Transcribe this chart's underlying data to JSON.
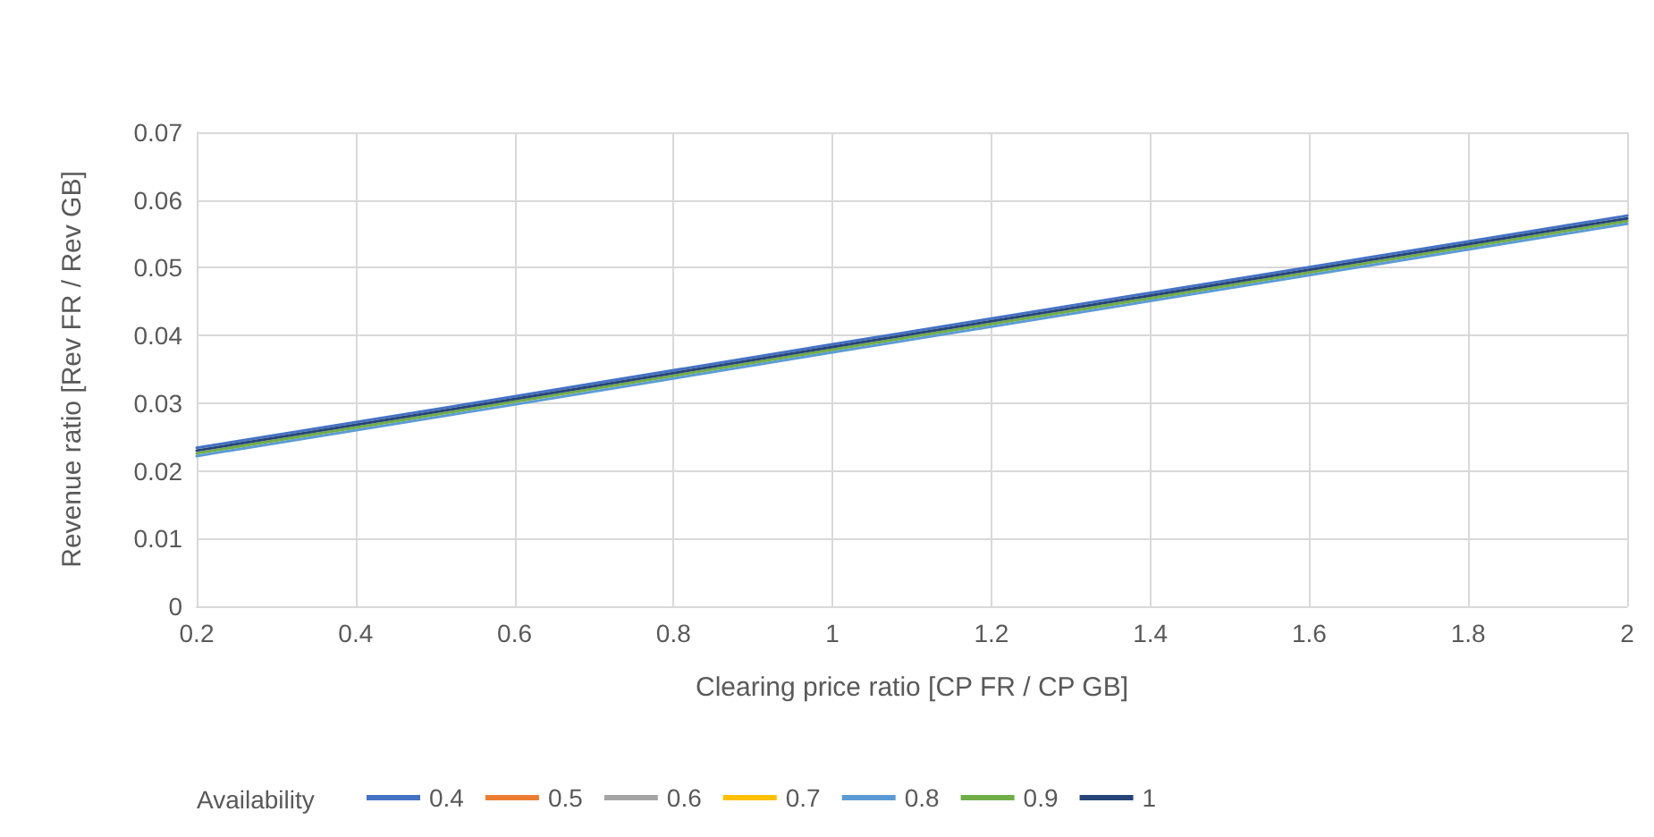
{
  "chart_data": {
    "type": "line",
    "xlabel": "Clearing price ratio [CP FR / CP GB]",
    "ylabel": "Revenue ratio [Rev FR / Rev GB]",
    "legend_title": "Availability",
    "x": [
      0.2,
      0.6,
      1,
      1.4,
      1.8,
      2
    ],
    "series": [
      {
        "name": "0.4",
        "color": "#4472c4",
        "values": [
          0.0234,
          0.031,
          0.0387,
          0.0463,
          0.0539,
          0.0577
        ]
      },
      {
        "name": "0.5",
        "color": "#ed7d31",
        "values": [
          null,
          null,
          null,
          null,
          null,
          null
        ]
      },
      {
        "name": "0.6",
        "color": "#a5a5a5",
        "values": [
          null,
          null,
          null,
          null,
          null,
          null
        ]
      },
      {
        "name": "0.7",
        "color": "#ffc000",
        "values": [
          null,
          null,
          null,
          null,
          null,
          null
        ]
      },
      {
        "name": "0.8",
        "color": "#5b9bd5",
        "values": [
          0.0222,
          0.0298,
          0.0375,
          0.0451,
          0.0527,
          0.0565
        ]
      },
      {
        "name": "0.9",
        "color": "#70ad47",
        "values": [
          0.0226,
          0.0302,
          0.0379,
          0.0455,
          0.0531,
          0.0569
        ]
      },
      {
        "name": "1",
        "color": "#264478",
        "values": [
          0.023,
          0.0306,
          0.0383,
          0.0459,
          0.0535,
          0.0573
        ]
      }
    ],
    "xlim": [
      0.2,
      2
    ],
    "xticks": [
      0.2,
      0.4,
      0.6,
      0.8,
      1,
      1.2,
      1.4,
      1.6,
      1.8,
      2
    ],
    "ylim": [
      0,
      0.07
    ],
    "yticks": [
      0,
      0.01,
      0.02,
      0.03,
      0.04,
      0.05,
      0.06,
      0.07
    ],
    "grid": true,
    "legend": "bottom",
    "marker": "none",
    "line_style": "solid"
  }
}
